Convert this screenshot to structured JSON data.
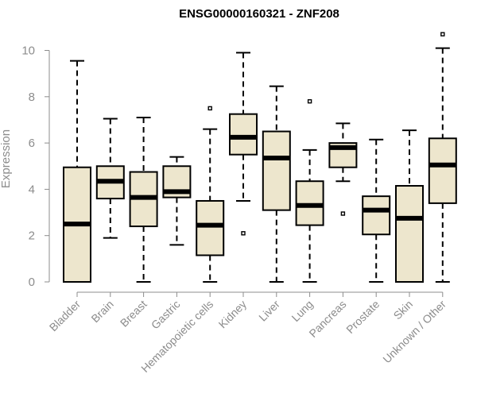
{
  "chart_data": {
    "type": "boxplot",
    "title": "ENSG00000160321 - ZNF208",
    "xlabel": "",
    "ylabel": "Expression",
    "ylim": [
      0,
      10.8
    ],
    "yticks": [
      0,
      2,
      4,
      6,
      8,
      10
    ],
    "grid": false,
    "legend": "none",
    "box_fill": "#ede6cd",
    "box_stroke": "#000000",
    "axis_color": "#8c8c8c",
    "categories": [
      "Bladder",
      "Brain",
      "Breast",
      "Gastric",
      "Hematopoietic cells",
      "Kidney",
      "Liver",
      "Lung",
      "Pancreas",
      "Prostate",
      "Skin",
      "Unknown / Other"
    ],
    "boxes": [
      {
        "category": "Bladder",
        "whisker_low": 0,
        "q1": 0,
        "median": 2.5,
        "q3": 4.95,
        "whisker_high": 9.55,
        "outliers": []
      },
      {
        "category": "Brain",
        "whisker_low": 1.9,
        "q1": 3.6,
        "median": 4.35,
        "q3": 5.0,
        "whisker_high": 7.05,
        "outliers": []
      },
      {
        "category": "Breast",
        "whisker_low": 0,
        "q1": 2.4,
        "median": 3.65,
        "q3": 4.75,
        "whisker_high": 7.1,
        "outliers": []
      },
      {
        "category": "Gastric",
        "whisker_low": 1.6,
        "q1": 3.65,
        "median": 3.9,
        "q3": 5.0,
        "whisker_high": 5.4,
        "outliers": []
      },
      {
        "category": "Hematopoietic cells",
        "whisker_low": 0,
        "q1": 1.15,
        "median": 2.45,
        "q3": 3.5,
        "whisker_high": 6.6,
        "outliers": [
          7.5
        ]
      },
      {
        "category": "Kidney",
        "whisker_low": 3.5,
        "q1": 5.5,
        "median": 6.25,
        "q3": 7.25,
        "whisker_high": 9.9,
        "outliers": [
          2.1
        ]
      },
      {
        "category": "Liver",
        "whisker_low": 0,
        "q1": 3.1,
        "median": 5.35,
        "q3": 6.5,
        "whisker_high": 8.45,
        "outliers": []
      },
      {
        "category": "Lung",
        "whisker_low": 0,
        "q1": 2.45,
        "median": 3.3,
        "q3": 4.35,
        "whisker_high": 5.7,
        "outliers": [
          7.8
        ]
      },
      {
        "category": "Pancreas",
        "whisker_low": 4.35,
        "q1": 4.95,
        "median": 5.8,
        "q3": 6.0,
        "whisker_high": 6.85,
        "outliers": [
          2.95
        ]
      },
      {
        "category": "Prostate",
        "whisker_low": 0,
        "q1": 2.05,
        "median": 3.1,
        "q3": 3.7,
        "whisker_high": 6.15,
        "outliers": []
      },
      {
        "category": "Skin",
        "whisker_low": 0,
        "q1": 0,
        "median": 2.75,
        "q3": 4.15,
        "whisker_high": 6.55,
        "outliers": []
      },
      {
        "category": "Unknown / Other",
        "whisker_low": 0,
        "q1": 3.4,
        "median": 5.05,
        "q3": 6.2,
        "whisker_high": 10.1,
        "outliers": [
          10.7
        ]
      }
    ]
  }
}
